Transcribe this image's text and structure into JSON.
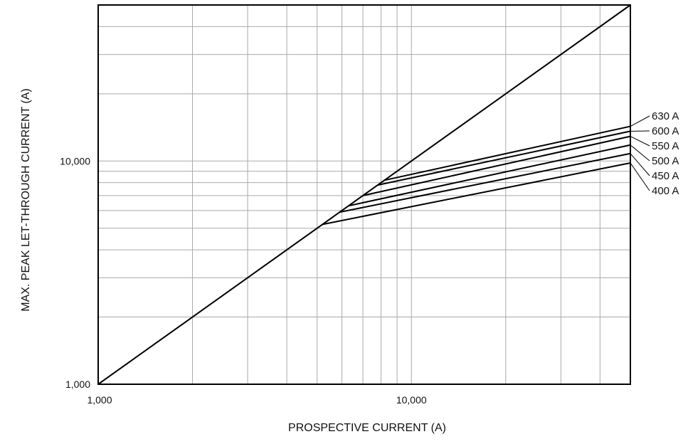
{
  "chart_data": {
    "type": "line",
    "title": "",
    "xlabel": "PROSPECTIVE CURRENT (A)",
    "ylabel": "MAX. PEAK LET-THROUGH  CURRENT (A)",
    "xscale": "log",
    "yscale": "log",
    "xlim": [
      1000,
      50000
    ],
    "ylim": [
      1000,
      50000
    ],
    "grid": true,
    "x_ticks": [
      1000,
      10000
    ],
    "x_tick_labels": [
      "1,000",
      "10,000"
    ],
    "y_ticks": [
      1000,
      10000
    ],
    "y_tick_labels": [
      "1,000",
      "10,000"
    ],
    "reference_line": {
      "x": [
        1000,
        50000
      ],
      "y": [
        1000,
        50000
      ]
    },
    "series": [
      {
        "name": "630 A",
        "x": [
          8200,
          50000
        ],
        "y": [
          8200,
          14300
        ]
      },
      {
        "name": "600 A",
        "x": [
          7800,
          50000
        ],
        "y": [
          7800,
          13600
        ]
      },
      {
        "name": "550 A",
        "x": [
          7000,
          50000
        ],
        "y": [
          7000,
          12900
        ]
      },
      {
        "name": "500 A",
        "x": [
          6300,
          50000
        ],
        "y": [
          6300,
          11800
        ]
      },
      {
        "name": "450 A",
        "x": [
          5900,
          50000
        ],
        "y": [
          5900,
          10800
        ]
      },
      {
        "name": "400 A",
        "x": [
          5200,
          50000
        ],
        "y": [
          5200,
          9800
        ]
      }
    ],
    "legend": "right"
  }
}
